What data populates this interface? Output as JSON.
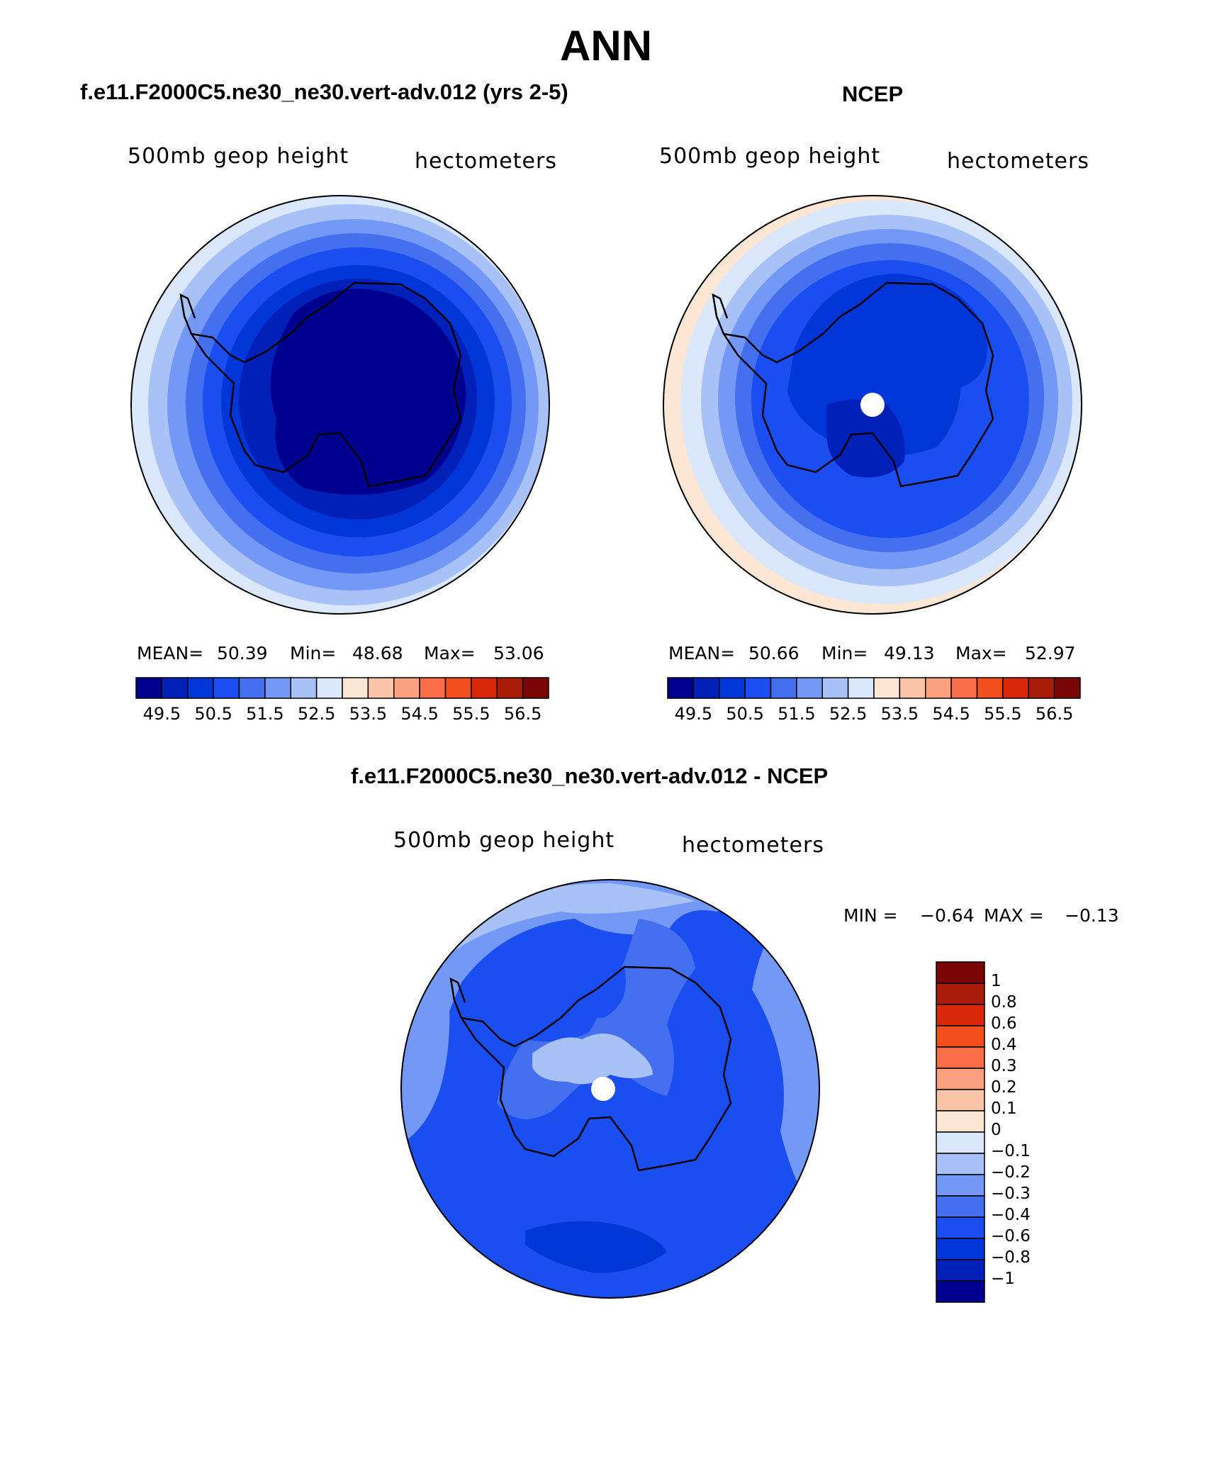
{
  "title": "ANN",
  "panels": {
    "model": {
      "header": "f.e11.F2000C5.ne30_ne30.vert-adv.012 (yrs 2-5)",
      "field_label": "500mb  geop  height",
      "units_label": "hectometers",
      "mean_label": "MEAN=",
      "mean_value": "50.39",
      "min_label": "Min=",
      "min_value": "48.68",
      "max_label": "Max=",
      "max_value": "53.06"
    },
    "obs": {
      "header": "NCEP",
      "field_label": "500mb  geop  height",
      "units_label": "hectometers",
      "mean_label": "MEAN=",
      "mean_value": "50.66",
      "min_label": "Min=",
      "min_value": "49.13",
      "max_label": "Max=",
      "max_value": "52.97"
    },
    "diff": {
      "header": "f.e11.F2000C5.ne30_ne30.vert-adv.012 - NCEP",
      "field_label": "500mb  geop  height",
      "units_label": "hectometers",
      "min_label": "MIN =",
      "min_value": "−0.64",
      "max_label": "MAX =",
      "max_value": "−0.13"
    }
  },
  "colorbars": {
    "abs": {
      "colors": [
        "#00008f",
        "#0020b8",
        "#0036d8",
        "#1a4ef0",
        "#4470f0",
        "#7398f5",
        "#a8c2f8",
        "#dbe8fc",
        "#fde6d4",
        "#fcc4a8",
        "#fba180",
        "#f96e48",
        "#f24e1e",
        "#d92808",
        "#a81c08",
        "#7a0606"
      ],
      "ticks": [
        "49.5",
        "50.5",
        "51.5",
        "52.5",
        "53.5",
        "54.5",
        "55.5",
        "56.5"
      ]
    },
    "diff": {
      "colors": [
        "#7a0606",
        "#a81c08",
        "#d92808",
        "#f24e1e",
        "#f96e48",
        "#fba180",
        "#fcc4a8",
        "#fde6d4",
        "#dbe8fc",
        "#a8c2f8",
        "#7398f5",
        "#4470f0",
        "#1a4ef0",
        "#0036d8",
        "#0020b8",
        "#00008f"
      ],
      "ticks": [
        "1",
        "0.8",
        "0.6",
        "0.4",
        "0.3",
        "0.2",
        "0.1",
        "0",
        "−0.1",
        "−0.2",
        "−0.3",
        "−0.4",
        "−0.6",
        "−0.8",
        "−1"
      ]
    }
  },
  "map_colors": {
    "model_rings": [
      "#dbe8fc",
      "#a8c2f8",
      "#7398f5",
      "#4470f0",
      "#1a4ef0",
      "#0036d8",
      "#0020b8",
      "#00008f"
    ],
    "obs_rings": [
      "#fde6d4",
      "#dbe8fc",
      "#a8c2f8",
      "#7398f5",
      "#4470f0",
      "#1a4ef0",
      "#0036d8",
      "#0020b8"
    ],
    "diff_fill": "#1a4ef0",
    "pole_marker": "#ffffff",
    "coastline": "#000000"
  }
}
